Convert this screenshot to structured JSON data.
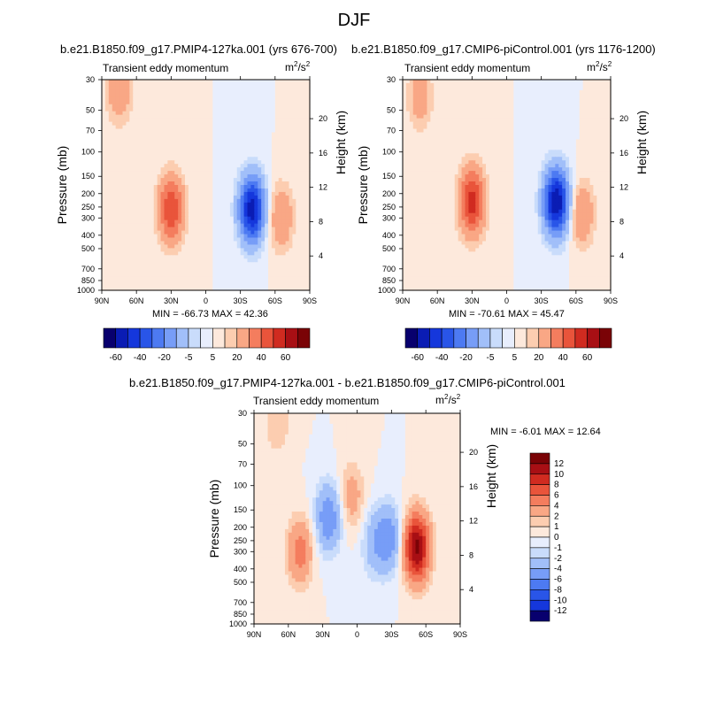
{
  "page": {
    "title": "DJF"
  },
  "panels": [
    {
      "run_title": "b.e21.B1850.f09_g17.PMIP4-127ka.001 (yrs 676-700)",
      "subtitle": "Transient eddy momentum",
      "units_base": "m",
      "units_sup1": "2",
      "units_mid": "/s",
      "units_sup2": "2",
      "minmax": "MIN = -66.73  MAX = 42.36"
    },
    {
      "run_title": "b.e21.B1850.f09_g17.CMIP6-piControl.001 (yrs 1176-1200)",
      "subtitle": "Transient eddy momentum",
      "units_base": "m",
      "units_sup1": "2",
      "units_mid": "/s",
      "units_sup2": "2",
      "minmax": "MIN = -70.61  MAX = 45.47"
    },
    {
      "run_title": "b.e21.B1850.f09_g17.PMIP4-127ka.001 - b.e21.B1850.f09_g17.CMIP6-piControl.001",
      "subtitle": "Transient eddy momentum",
      "units_base": "m",
      "units_sup1": "2",
      "units_mid": "/s",
      "units_sup2": "2",
      "minmax": "MIN =  -6.01  MAX =  12.64"
    }
  ],
  "chart_data": [
    {
      "type": "heatmap",
      "subtype": "latitude-pressure filled contour",
      "title": "Transient eddy momentum",
      "xlabel": "",
      "ylabel": "Pressure (mb)",
      "y2label": "Height (km)",
      "units": "m^2/s^2",
      "x_ticks": [
        "90N",
        "60N",
        "30N",
        "0",
        "30S",
        "60S",
        "90S"
      ],
      "x_values": [
        90,
        60,
        30,
        0,
        -30,
        -60,
        -90
      ],
      "y_ticks": [
        "30",
        "50",
        "70",
        "100",
        "150",
        "200",
        "250",
        "300",
        "400",
        "500",
        "700",
        "850",
        "1000"
      ],
      "y_values": [
        30,
        50,
        70,
        100,
        150,
        200,
        250,
        300,
        400,
        500,
        700,
        850,
        1000
      ],
      "y2_ticks": [
        "4",
        "8",
        "12",
        "16",
        "20"
      ],
      "levels": [
        -70,
        -60,
        -50,
        -40,
        -30,
        -20,
        -10,
        -5,
        0,
        5,
        10,
        20,
        30,
        40,
        50,
        60,
        70
      ],
      "min": -66.73,
      "max": 42.36,
      "features": [
        {
          "lat": 30,
          "p": 260,
          "value": 40
        },
        {
          "lat": -40,
          "p": 260,
          "value": -66
        },
        {
          "lat": 75,
          "p": 35,
          "value": 20
        },
        {
          "lat": -65,
          "p": 300,
          "value": 20
        }
      ]
    },
    {
      "type": "heatmap",
      "subtype": "latitude-pressure filled contour",
      "title": "Transient eddy momentum",
      "xlabel": "",
      "ylabel": "Pressure (mb)",
      "y2label": "Height (km)",
      "units": "m^2/s^2",
      "x_ticks": [
        "90N",
        "60N",
        "30N",
        "0",
        "30S",
        "60S",
        "90S"
      ],
      "x_values": [
        90,
        60,
        30,
        0,
        -30,
        -60,
        -90
      ],
      "y_ticks": [
        "30",
        "50",
        "70",
        "100",
        "150",
        "200",
        "250",
        "300",
        "400",
        "500",
        "700",
        "850",
        "1000"
      ],
      "y_values": [
        30,
        50,
        70,
        100,
        150,
        200,
        250,
        300,
        400,
        500,
        700,
        850,
        1000
      ],
      "y2_ticks": [
        "4",
        "8",
        "12",
        "16",
        "20"
      ],
      "levels": [
        -70,
        -60,
        -50,
        -40,
        -30,
        -20,
        -10,
        -5,
        0,
        5,
        10,
        20,
        30,
        40,
        50,
        60,
        70
      ],
      "min": -70.61,
      "max": 45.47,
      "features": [
        {
          "lat": 30,
          "p": 230,
          "value": 45
        },
        {
          "lat": -43,
          "p": 230,
          "value": -70
        },
        {
          "lat": 75,
          "p": 40,
          "value": 15
        },
        {
          "lat": -65,
          "p": 280,
          "value": 20
        }
      ]
    },
    {
      "type": "heatmap",
      "subtype": "latitude-pressure filled contour (difference)",
      "title": "Transient eddy momentum",
      "xlabel": "",
      "ylabel": "Pressure (mb)",
      "y2label": "Height (km)",
      "units": "m^2/s^2",
      "x_ticks": [
        "90N",
        "60N",
        "30N",
        "0",
        "30S",
        "60S",
        "90S"
      ],
      "x_values": [
        90,
        60,
        30,
        0,
        -30,
        -60,
        -90
      ],
      "y_ticks": [
        "30",
        "50",
        "70",
        "100",
        "150",
        "200",
        "250",
        "300",
        "400",
        "500",
        "700",
        "850",
        "1000"
      ],
      "y_values": [
        30,
        50,
        70,
        100,
        150,
        200,
        250,
        300,
        400,
        500,
        700,
        850,
        1000
      ],
      "y2_ticks": [
        "4",
        "8",
        "12",
        "16",
        "20"
      ],
      "levels": [
        -14,
        -12,
        -10,
        -8,
        -6,
        -4,
        -2,
        -1,
        0,
        1,
        2,
        4,
        6,
        8,
        10,
        12,
        14
      ],
      "min": -6.01,
      "max": 12.64,
      "features": [
        {
          "lat": -52,
          "p": 280,
          "value": 12.6
        },
        {
          "lat": 50,
          "p": 300,
          "value": 5
        },
        {
          "lat": 25,
          "p": 170,
          "value": -6
        },
        {
          "lat": 5,
          "p": 120,
          "value": 3
        },
        {
          "lat": -28,
          "p": 240,
          "value": -5
        },
        {
          "lat": 70,
          "p": 35,
          "value": 2
        },
        {
          "lat": -15,
          "p": 260,
          "value": -3
        }
      ]
    }
  ],
  "colorbar_top": {
    "labels": [
      "-60",
      "-40",
      "-20",
      "-5",
      "5",
      "20",
      "40",
      "60"
    ],
    "colors": [
      "#08006e",
      "#0a1cb4",
      "#1537dc",
      "#2955e8",
      "#4d7af2",
      "#779df7",
      "#a1bff9",
      "#c9dcfb",
      "#e8eefd",
      "#fde9dc",
      "#fccdb0",
      "#f9a785",
      "#f47d5e",
      "#e9543b",
      "#d02b20",
      "#a80f14",
      "#7a0306"
    ]
  },
  "colorbar_diff": {
    "labels": [
      "12",
      "10",
      "8",
      "6",
      "4",
      "2",
      "1",
      "0",
      "-1",
      "-2",
      "-4",
      "-6",
      "-8",
      "-10",
      "-12"
    ],
    "colors": [
      "#7a0306",
      "#a80f14",
      "#d02b20",
      "#e9543b",
      "#f47d5e",
      "#f9a785",
      "#fccdb0",
      "#fde9dc",
      "#e8eefd",
      "#c9dcfb",
      "#a1bff9",
      "#779df7",
      "#4d7af2",
      "#2955e8",
      "#1537dc",
      "#08006e"
    ]
  }
}
